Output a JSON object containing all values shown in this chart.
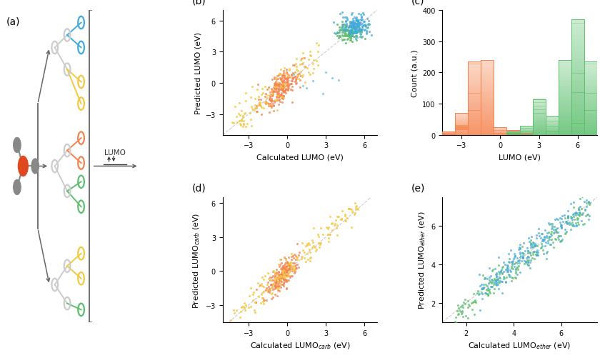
{
  "panel_b": {
    "title": "(b)",
    "xlabel": "Calculated LUMO (eV)",
    "ylabel": "Predicted LUMO (eV)",
    "xlim": [
      -5,
      7
    ],
    "ylim": [
      -5,
      7
    ],
    "xticks": [
      -3,
      0,
      3,
      6
    ],
    "yticks": [
      -3,
      0,
      3,
      6
    ]
  },
  "panel_c": {
    "title": "(c)",
    "xlabel": "LUMO (eV)",
    "ylabel": "Count (a.u.)",
    "xlim": [
      -4.5,
      7.5
    ],
    "ylim": [
      0,
      400
    ],
    "xticks": [
      -3,
      0,
      3,
      6
    ],
    "yticks": [
      0,
      100,
      200,
      300,
      400
    ],
    "orange_bins": [
      -4.5,
      -3.5,
      -2.5,
      -1.5,
      -0.5,
      0.5,
      1.5
    ],
    "orange_counts": [
      10,
      70,
      235,
      240,
      25,
      15,
      5
    ],
    "green_bins": [
      0.5,
      1.5,
      2.5,
      3.5,
      4.5,
      5.5,
      6.5
    ],
    "green_counts": [
      10,
      30,
      115,
      60,
      240,
      370,
      235
    ]
  },
  "panel_d": {
    "title": "(d)",
    "xlabel": "Calculated LUMO$_{carb}$ (eV)",
    "ylabel": "Predicted LUMO$_{carb}$ (eV)",
    "xlim": [
      -5,
      7
    ],
    "ylim": [
      -4.5,
      6.5
    ],
    "xticks": [
      -3,
      0,
      3,
      6
    ],
    "yticks": [
      -3,
      0,
      3,
      6
    ]
  },
  "panel_e": {
    "title": "(e)",
    "xlabel": "Calculated LUMO$_{ether}$ (eV)",
    "ylabel": "Predicted LUMO$_{ether}$ (eV)",
    "xlim": [
      1,
      7.5
    ],
    "ylim": [
      1,
      7.5
    ],
    "xticks": [
      2,
      4,
      6
    ],
    "yticks": [
      2,
      4,
      6
    ]
  },
  "colors": {
    "orange": "#F5834E",
    "yellow": "#F5C842",
    "green": "#5DBF6E",
    "blue": "#42AADC",
    "gray_node": "#AAAAAA",
    "light_gray": "#CCCCCC",
    "dark_gray": "#666666",
    "mol_orange": "#E04820",
    "mol_gray": "#888888"
  },
  "background": "#ffffff",
  "panel_label_fontsize": 10,
  "axis_label_fontsize": 8,
  "tick_fontsize": 7
}
